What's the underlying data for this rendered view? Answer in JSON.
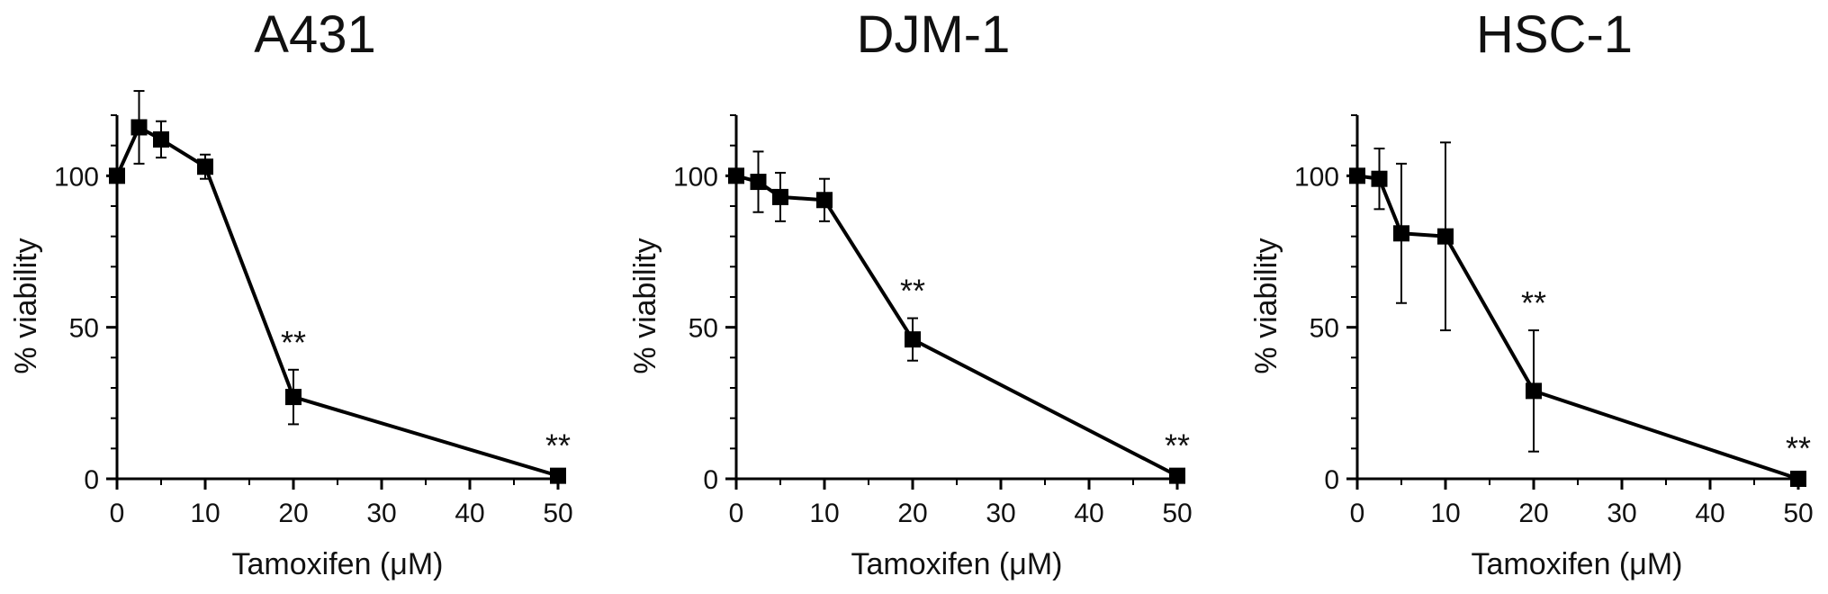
{
  "chart_data": [
    {
      "type": "line",
      "title": "A431",
      "xlabel": "Tamoxifen (μM)",
      "ylabel": "% viability",
      "xlim": [
        0,
        50
      ],
      "ylim": [
        0,
        120
      ],
      "x_ticks": [
        "0",
        "10",
        "20",
        "30",
        "40",
        "50"
      ],
      "y_ticks": [
        "0",
        "50",
        "100"
      ],
      "series": [
        {
          "x": [
            0,
            2.5,
            5,
            10,
            20,
            50
          ],
          "y": [
            100,
            116,
            112,
            103,
            27,
            1
          ],
          "error": [
            2,
            12,
            6,
            4,
            9,
            1
          ]
        }
      ],
      "annotations": [
        {
          "x": 20,
          "text": "**"
        },
        {
          "x": 50,
          "text": "**"
        }
      ]
    },
    {
      "type": "line",
      "title": "DJM-1",
      "xlabel": "Tamoxifen (μM)",
      "ylabel": "% viability",
      "xlim": [
        0,
        50
      ],
      "ylim": [
        0,
        120
      ],
      "x_ticks": [
        "0",
        "10",
        "20",
        "30",
        "40",
        "50"
      ],
      "y_ticks": [
        "0",
        "50",
        "100"
      ],
      "series": [
        {
          "x": [
            0,
            2.5,
            5,
            10,
            20,
            50
          ],
          "y": [
            100,
            98,
            93,
            92,
            46,
            1
          ],
          "error": [
            2,
            10,
            8,
            7,
            7,
            1
          ]
        }
      ],
      "annotations": [
        {
          "x": 20,
          "text": "**"
        },
        {
          "x": 50,
          "text": "**"
        }
      ]
    },
    {
      "type": "line",
      "title": "HSC-1",
      "xlabel": "Tamoxifen (μM)",
      "ylabel": "% viability",
      "xlim": [
        0,
        50
      ],
      "ylim": [
        0,
        120
      ],
      "x_ticks": [
        "0",
        "10",
        "20",
        "30",
        "40",
        "50"
      ],
      "y_ticks": [
        "0",
        "50",
        "100"
      ],
      "series": [
        {
          "x": [
            0,
            2.5,
            5,
            10,
            20,
            50
          ],
          "y": [
            100,
            99,
            81,
            80,
            29,
            0
          ],
          "error": [
            2,
            10,
            23,
            31,
            20,
            1
          ]
        }
      ],
      "annotations": [
        {
          "x": 20,
          "text": "**"
        },
        {
          "x": 50,
          "text": "**"
        }
      ]
    }
  ]
}
